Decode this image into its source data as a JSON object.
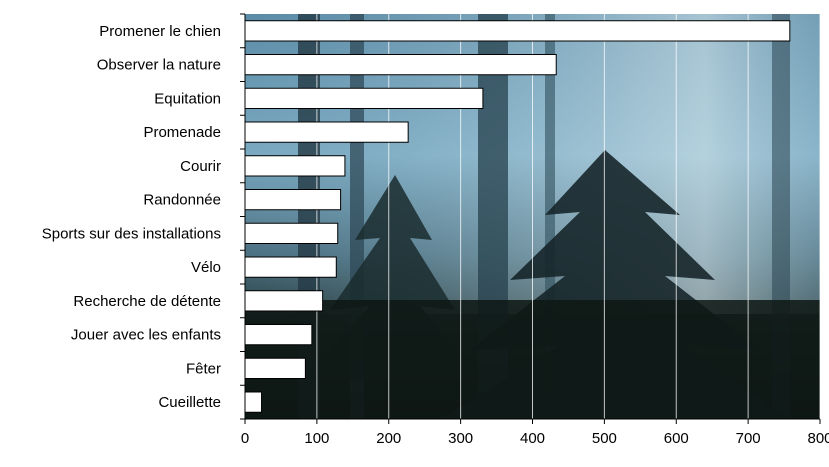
{
  "chart_data": {
    "type": "bar",
    "orientation": "horizontal",
    "title": "",
    "xlabel": "",
    "ylabel": "",
    "categories": [
      "Promener le chien",
      "Observer la nature",
      "Equitation",
      "Promenade",
      "Courir",
      "Randonnée",
      "Sports sur des installations",
      "Vélo",
      "Recherche de détente",
      "Jouer avec les enfants",
      "Fêter",
      "Cueillette"
    ],
    "values": [
      758,
      433,
      331,
      227,
      139,
      133,
      129,
      127,
      108,
      93,
      84,
      23
    ],
    "xlim": [
      0,
      800
    ],
    "xticks": [
      0,
      100,
      200,
      300,
      400,
      500,
      600,
      700,
      800
    ],
    "grid": "vertical",
    "legend": "none",
    "background": "forest-photo",
    "colors": {
      "bar_fill": "#ffffff",
      "bar_stroke": "#000000",
      "grid": "#ffffff",
      "sky_light": "#b9d6e3",
      "sky_mid": "#6f9fb8",
      "forest_dark": "#0e1814"
    }
  }
}
